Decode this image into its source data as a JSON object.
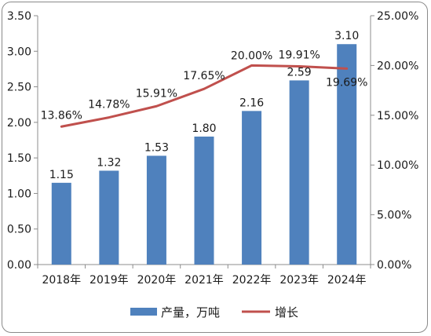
{
  "chart_data": {
    "type": "bar",
    "categories": [
      "2018年",
      "2019年",
      "2020年",
      "2021年",
      "2022年",
      "2023年",
      "2024年"
    ],
    "series": [
      {
        "name": "产量，万吨",
        "type": "bar",
        "axis": "left",
        "color": "#4f81bd",
        "values": [
          1.15,
          1.32,
          1.53,
          1.8,
          2.16,
          2.59,
          3.1
        ],
        "labels": [
          "1.15",
          "1.32",
          "1.53",
          "1.80",
          "2.16",
          "2.59",
          "3.10"
        ]
      },
      {
        "name": "增长",
        "type": "line",
        "axis": "right",
        "color": "#c0504d",
        "values": [
          13.86,
          14.78,
          15.91,
          17.65,
          20.0,
          19.91,
          19.69
        ],
        "labels": [
          "13.86%",
          "14.78%",
          "15.91%",
          "17.65%",
          "20.00%",
          "19.91%",
          "19.69%"
        ]
      }
    ],
    "y_left": {
      "range": [
        0,
        3.5
      ],
      "ticks": [
        "0.00",
        "0.50",
        "1.00",
        "1.50",
        "2.00",
        "2.50",
        "3.00",
        "3.50"
      ]
    },
    "y_right": {
      "range": [
        0,
        25
      ],
      "ticks": [
        "0.00%",
        "5.00%",
        "10.00%",
        "15.00%",
        "20.00%",
        "25.00%"
      ]
    },
    "grid": false,
    "legend_position": "bottom"
  }
}
